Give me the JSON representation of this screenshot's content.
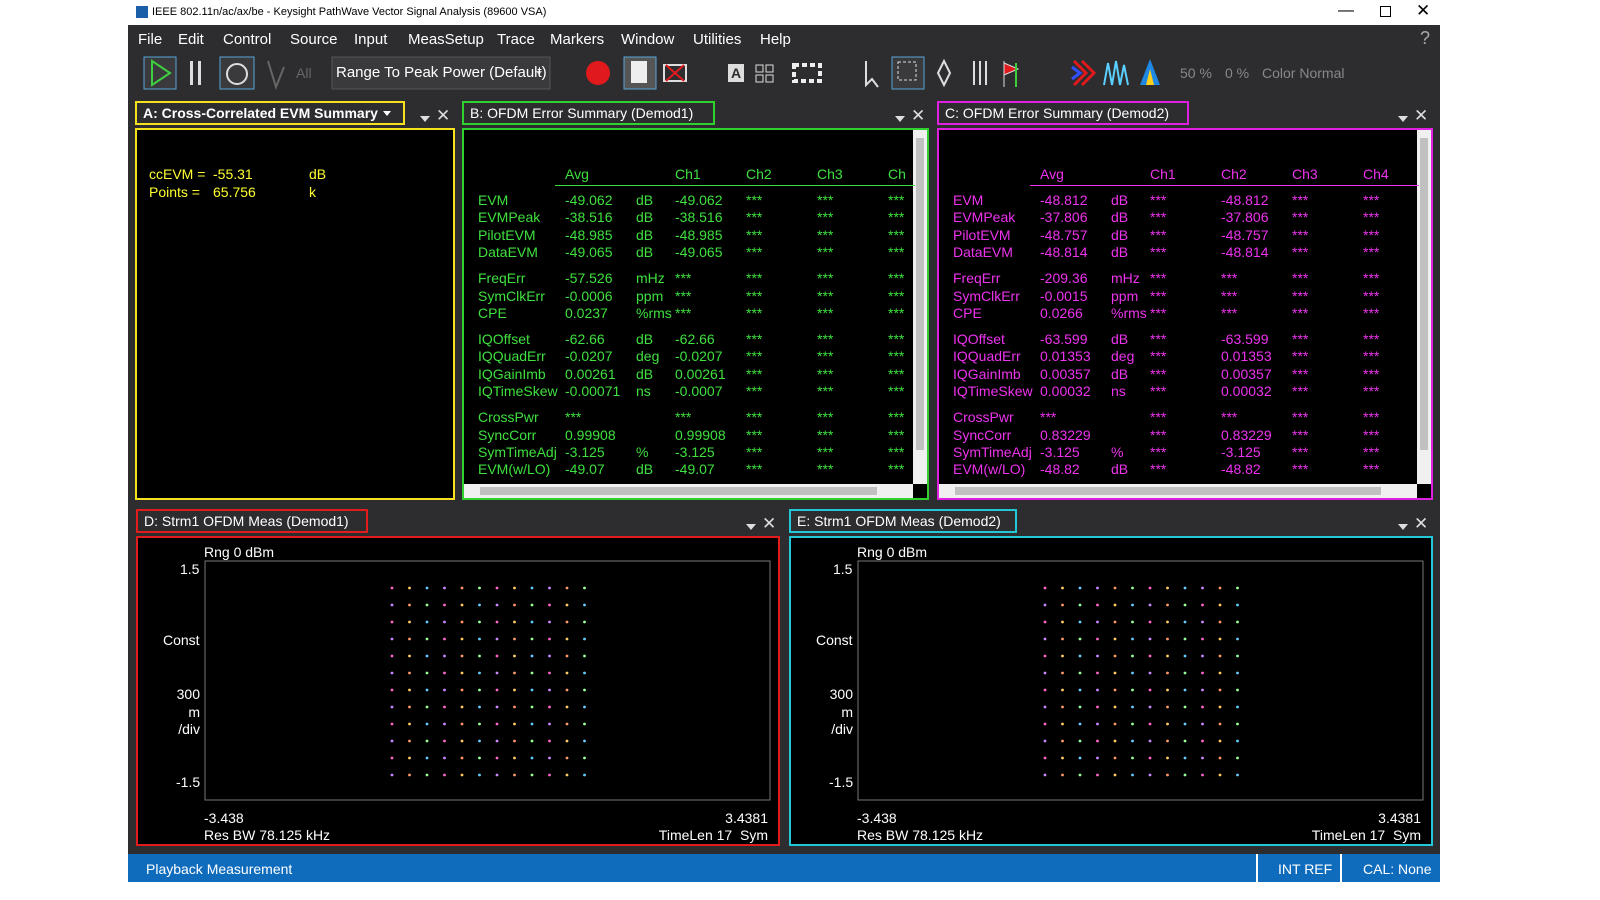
{
  "window": {
    "title": "IEEE 802.11n/ac/ax/be - Keysight PathWave Vector Signal Analysis (89600 VSA)"
  },
  "menu": [
    "File",
    "Edit",
    "Control",
    "Source",
    "Input",
    "MeasSetup",
    "Trace",
    "Markers",
    "Window",
    "Utilities",
    "Help"
  ],
  "toolbar": {
    "all": "All",
    "range": "Range To Peak Power (Default)",
    "label_a": "A",
    "pct1": "50 %",
    "pct2": "0 %",
    "color_mode": "Color Normal",
    "help": "?"
  },
  "panels": {
    "a": {
      "title": "A: Cross-Correlated EVM Summary",
      "rows": [
        {
          "name": "ccEVM =",
          "value": "-55.31",
          "unit": "dB"
        },
        {
          "name": "Points  =",
          "value": "65.756",
          "unit": "k"
        }
      ]
    },
    "b": {
      "title": "B: OFDM Error Summary (Demod1)",
      "headers": [
        "Avg",
        "Ch1",
        "Ch2",
        "Ch3",
        "Ch"
      ],
      "groups": [
        [
          {
            "name": "EVM",
            "avg": "-49.062",
            "unit": "dB",
            "ch": [
              "-49.062",
              "***",
              "***",
              "***"
            ]
          },
          {
            "name": "EVMPeak",
            "avg": "-38.516",
            "unit": "dB",
            "ch": [
              "-38.516",
              "***",
              "***",
              "***"
            ]
          },
          {
            "name": "PilotEVM",
            "avg": "-48.985",
            "unit": "dB",
            "ch": [
              "-48.985",
              "***",
              "***",
              "***"
            ]
          },
          {
            "name": "DataEVM",
            "avg": "-49.065",
            "unit": "dB",
            "ch": [
              "-49.065",
              "***",
              "***",
              "***"
            ]
          }
        ],
        [
          {
            "name": "FreqErr",
            "avg": "-57.526",
            "unit": "mHz",
            "ch": [
              "***",
              "***",
              "***",
              "***"
            ]
          },
          {
            "name": "SymClkErr",
            "avg": "-0.0006",
            "unit": "ppm",
            "ch": [
              "***",
              "***",
              "***",
              "***"
            ]
          },
          {
            "name": "CPE",
            "avg": "0.0237",
            "unit": "%rms",
            "ch": [
              "***",
              "***",
              "***",
              "***"
            ]
          }
        ],
        [
          {
            "name": "IQOffset",
            "avg": "-62.66",
            "unit": "dB",
            "ch": [
              "-62.66",
              "***",
              "***",
              "***"
            ]
          },
          {
            "name": "IQQuadErr",
            "avg": "-0.0207",
            "unit": "deg",
            "ch": [
              "-0.0207",
              "***",
              "***",
              "***"
            ]
          },
          {
            "name": "IQGainImb",
            "avg": "0.00261",
            "unit": "dB",
            "ch": [
              "0.00261",
              "***",
              "***",
              "***"
            ]
          },
          {
            "name": "IQTimeSkew",
            "avg": "-0.00071",
            "unit": "ns",
            "ch": [
              "-0.0007",
              "***",
              "***",
              "***"
            ]
          }
        ],
        [
          {
            "name": "CrossPwr",
            "avg": "***",
            "ch": [
              "***",
              "***",
              "***",
              "***"
            ]
          },
          {
            "name": "SyncCorr",
            "avg": "0.99908",
            "ch": [
              "0.99908",
              "***",
              "***",
              "***"
            ]
          },
          {
            "name": "SymTimeAdj",
            "avg": "-3.125",
            "unit": "%",
            "ch": [
              "-3.125",
              "***",
              "***",
              "***"
            ]
          },
          {
            "name": "EVM(w/LO)",
            "avg": "-49.07",
            "unit": "dB",
            "ch": [
              "-49.07",
              "***",
              "***",
              "***"
            ]
          }
        ]
      ]
    },
    "c": {
      "title": "C: OFDM Error Summary (Demod2)",
      "headers": [
        "Avg",
        "Ch1",
        "Ch2",
        "Ch3",
        "Ch4"
      ],
      "groups": [
        [
          {
            "name": "EVM",
            "avg": "-48.812",
            "unit": "dB",
            "ch": [
              "***",
              "-48.812",
              "***",
              "***"
            ]
          },
          {
            "name": "EVMPeak",
            "avg": "-37.806",
            "unit": "dB",
            "ch": [
              "***",
              "-37.806",
              "***",
              "***"
            ]
          },
          {
            "name": "PilotEVM",
            "avg": "-48.757",
            "unit": "dB",
            "ch": [
              "***",
              "-48.757",
              "***",
              "***"
            ]
          },
          {
            "name": "DataEVM",
            "avg": "-48.814",
            "unit": "dB",
            "ch": [
              "***",
              "-48.814",
              "***",
              "***"
            ]
          }
        ],
        [
          {
            "name": "FreqErr",
            "avg": "-209.36",
            "unit": "mHz",
            "ch": [
              "***",
              "***",
              "***",
              "***"
            ]
          },
          {
            "name": "SymClkErr",
            "avg": "-0.0015",
            "unit": "ppm",
            "ch": [
              "***",
              "***",
              "***",
              "***"
            ]
          },
          {
            "name": "CPE",
            "avg": "0.0266",
            "unit": "%rms",
            "ch": [
              "***",
              "***",
              "***",
              "***"
            ]
          }
        ],
        [
          {
            "name": "IQOffset",
            "avg": "-63.599",
            "unit": "dB",
            "ch": [
              "***",
              "-63.599",
              "***",
              "***"
            ]
          },
          {
            "name": "IQQuadErr",
            "avg": "0.01353",
            "unit": "deg",
            "ch": [
              "***",
              "0.01353",
              "***",
              "***"
            ]
          },
          {
            "name": "IQGainImb",
            "avg": "0.00357",
            "unit": "dB",
            "ch": [
              "***",
              "0.00357",
              "***",
              "***"
            ]
          },
          {
            "name": "IQTimeSkew",
            "avg": "0.00032",
            "unit": "ns",
            "ch": [
              "***",
              "0.00032",
              "***",
              "***"
            ]
          }
        ],
        [
          {
            "name": "CrossPwr",
            "avg": "***",
            "ch": [
              "***",
              "***",
              "***",
              "***"
            ]
          },
          {
            "name": "SyncCorr",
            "avg": "0.83229",
            "ch": [
              "***",
              "0.83229",
              "***",
              "***"
            ]
          },
          {
            "name": "SymTimeAdj",
            "avg": "-3.125",
            "unit": "%",
            "ch": [
              "***",
              "-3.125",
              "***",
              "***"
            ]
          },
          {
            "name": "EVM(w/LO)",
            "avg": "-48.82",
            "unit": "dB",
            "ch": [
              "***",
              "-48.82",
              "***",
              "***"
            ]
          }
        ]
      ]
    },
    "d": {
      "title": "D: Strm1 OFDM Meas (Demod1)",
      "range": "Rng 0 dBm",
      "y_top": "1.5",
      "y_name": "Const",
      "y_div": [
        "300",
        "m",
        "/div"
      ],
      "y_bottom": "-1.5",
      "x_left": "-3.438",
      "x_right": "3.4381",
      "res_bw": "Res BW 78.125 kHz",
      "time_len": "TimeLen 17  Sym"
    },
    "e": {
      "title": "E: Strm1 OFDM Meas (Demod2)",
      "range": "Rng 0 dBm",
      "y_top": "1.5",
      "y_name": "Const",
      "y_div": [
        "300",
        "m",
        "/div"
      ],
      "y_bottom": "-1.5",
      "x_left": "-3.438",
      "x_right": "3.4381",
      "res_bw": "Res BW 78.125 kHz",
      "time_len": "TimeLen 17  Sym"
    }
  },
  "status": {
    "message": "Playback Measurement",
    "ref": "INT REF",
    "cal": "CAL: None"
  }
}
